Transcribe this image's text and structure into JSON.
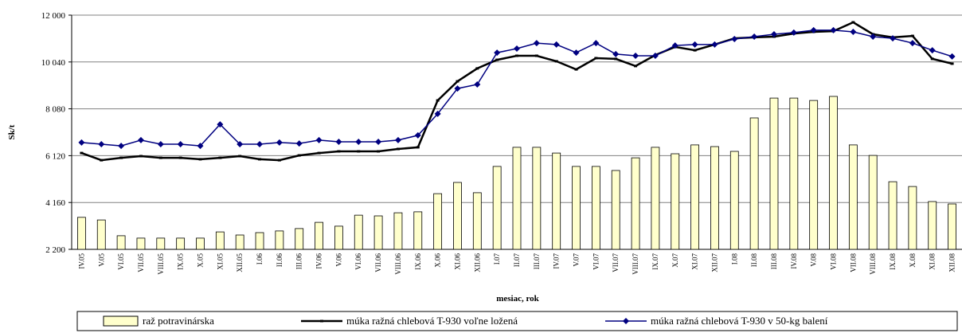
{
  "chart_data": {
    "type": "bar_line",
    "y_axis_label": "Sk/t",
    "x_axis_label": "mesiac, rok",
    "categories": [
      "IV.05",
      "V.05",
      "VI.05",
      "VII.05",
      "VIII.05",
      "IX.05",
      "X.05",
      "XI.05",
      "XII.05",
      "I.06",
      "II.06",
      "III.06",
      "IV.06",
      "V.06",
      "VI.06",
      "VII.06",
      "VIII.06",
      "IX.06",
      "X.06",
      "XI.06",
      "XII.06",
      "I.07",
      "II.07",
      "III.07",
      "IV.07",
      "V.07",
      "VI.07",
      "VII.07",
      "VIII.07",
      "IX.07",
      "X.07",
      "XI.07",
      "XII.07",
      "I.08",
      "II.08",
      "III.08",
      "IV.08",
      "V.08",
      "VI.08",
      "VII.08",
      "VIII.08",
      "IX.08",
      "X.08",
      "XI.08",
      "XII.08"
    ],
    "series": [
      {
        "name": "raž potravinárska",
        "kind": "bar",
        "color": "#ffffcc",
        "values": [
          3540,
          3430,
          2770,
          2670,
          2670,
          2670,
          2670,
          2930,
          2800,
          2900,
          2970,
          3070,
          3330,
          3170,
          3630,
          3600,
          3730,
          3770,
          4530,
          5000,
          4570,
          5670,
          6470,
          6470,
          6230,
          5670,
          5670,
          5500,
          6030,
          6470,
          6200,
          6570,
          6500,
          6300,
          7700,
          8530,
          8530,
          8430,
          8600,
          6570,
          6130,
          5030,
          4830,
          4200,
          4100
        ]
      },
      {
        "name": "múka ražná chlebová T-930 voľne ložená",
        "kind": "line",
        "color": "#000000",
        "values": [
          6230,
          5930,
          6030,
          6100,
          6030,
          6030,
          5970,
          6030,
          6100,
          5970,
          5930,
          6130,
          6230,
          6300,
          6300,
          6300,
          6400,
          6470,
          8430,
          9230,
          9770,
          10130,
          10300,
          10300,
          10070,
          9730,
          10200,
          10170,
          9870,
          10330,
          10670,
          10530,
          10770,
          11030,
          11070,
          11100,
          11230,
          11300,
          11330,
          11700,
          11200,
          11070,
          11130,
          10170,
          9970
        ]
      },
      {
        "name": "múka ražná chlebová T-930 v 50-kg balení",
        "kind": "line",
        "color": "#000080",
        "values": [
          6670,
          6600,
          6530,
          6770,
          6600,
          6600,
          6530,
          7430,
          6600,
          6600,
          6670,
          6630,
          6770,
          6700,
          6700,
          6700,
          6770,
          6970,
          7870,
          8930,
          9100,
          10430,
          10600,
          10830,
          10770,
          10430,
          10830,
          10370,
          10300,
          10300,
          10730,
          10770,
          10770,
          11000,
          11100,
          11200,
          11270,
          11370,
          11370,
          11300,
          11100,
          11030,
          10830,
          10530,
          10270
        ]
      }
    ],
    "ylim": [
      2200,
      12000
    ],
    "yticks": [
      {
        "value": 2200,
        "label": "2 200"
      },
      {
        "value": 4160,
        "label": "4 160"
      },
      {
        "value": 6120,
        "label": "6 120"
      },
      {
        "value": 8080,
        "label": "8 080"
      },
      {
        "value": 10040,
        "label": "10 040"
      },
      {
        "value": 12000,
        "label": "12 000"
      }
    ],
    "grid": true,
    "legend": "bottom"
  }
}
